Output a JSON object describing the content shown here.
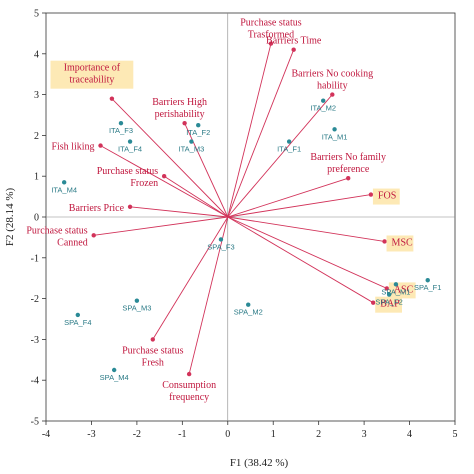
{
  "chart_data": {
    "type": "scatter",
    "subtype": "pca-biplot",
    "title": "",
    "xlabel": "F1 (38.42 %)",
    "ylabel": "F2 (28.14 %)",
    "xlim": [
      -4,
      5
    ],
    "ylim": [
      -5,
      5
    ],
    "x_ticks": [
      "-4",
      "-3",
      "-2",
      "-1",
      "0",
      "1",
      "2",
      "3",
      "4",
      "5"
    ],
    "y_ticks": [
      "5",
      "4",
      "3",
      "2",
      "1",
      "0",
      "-1",
      "-2",
      "-3",
      "-4",
      "-5"
    ],
    "vector_color": "#d2335a",
    "point_color": "#2a8a96",
    "highlight_color": "#fde9b5",
    "variables": [
      {
        "label": [
          "Purchase status",
          "Trasformed"
        ],
        "x": 0.95,
        "y": 4.25
      },
      {
        "label": [
          "Barriers Time"
        ],
        "x": 1.45,
        "y": 4.1
      },
      {
        "label": [
          "Barriers No cooking",
          "hability"
        ],
        "x": 2.3,
        "y": 3.0
      },
      {
        "label": [
          "Importance of",
          "traceability"
        ],
        "x": -2.55,
        "y": 2.9,
        "highlight": true
      },
      {
        "label": [
          "Barriers High",
          "perishability"
        ],
        "x": -0.95,
        "y": 2.3
      },
      {
        "label": [
          "Fish liking"
        ],
        "x": -2.8,
        "y": 1.75
      },
      {
        "label": [
          "Purchase status",
          "Frozen"
        ],
        "x": -1.4,
        "y": 1.0
      },
      {
        "label": [
          "Barriers Price"
        ],
        "x": -2.15,
        "y": 0.25
      },
      {
        "label": [
          "Barriers No family",
          "preference"
        ],
        "x": 2.65,
        "y": 0.95
      },
      {
        "label": [
          "FOS"
        ],
        "x": 3.15,
        "y": 0.55,
        "highlight": true
      },
      {
        "label": [
          "Purchase status",
          "Canned"
        ],
        "x": -2.95,
        "y": -0.45
      },
      {
        "label": [
          "MSC"
        ],
        "x": 3.45,
        "y": -0.6,
        "highlight": true
      },
      {
        "label": [
          "ASC"
        ],
        "x": 3.5,
        "y": -1.75,
        "highlight": true
      },
      {
        "label": [
          "BAP"
        ],
        "x": 3.2,
        "y": -2.1,
        "highlight": true
      },
      {
        "label": [
          "Purchase status",
          "Fresh"
        ],
        "x": -1.65,
        "y": -3.0
      },
      {
        "label": [
          "Consumption",
          "frequency"
        ],
        "x": -0.85,
        "y": -3.85
      }
    ],
    "observations": [
      {
        "label": "ITA_M2",
        "x": 2.1,
        "y": 2.85
      },
      {
        "label": "ITA_M1",
        "x": 2.35,
        "y": 2.15
      },
      {
        "label": "ITA_F1",
        "x": 1.35,
        "y": 1.85
      },
      {
        "label": "ITA_F3",
        "x": -2.35,
        "y": 2.3
      },
      {
        "label": "ITA_F4",
        "x": -2.15,
        "y": 1.85
      },
      {
        "label": "ITA_F2",
        "x": -0.65,
        "y": 2.25
      },
      {
        "label": "ITA_M3",
        "x": -0.8,
        "y": 1.85
      },
      {
        "label": "ITA_M4",
        "x": -3.6,
        "y": 0.85
      },
      {
        "label": "SPA_F3",
        "x": -0.15,
        "y": -0.55
      },
      {
        "label": "SPA_M3",
        "x": -2.0,
        "y": -2.05
      },
      {
        "label": "SPA_M2",
        "x": 0.45,
        "y": -2.15
      },
      {
        "label": "SPA_F4",
        "x": -3.3,
        "y": -2.4
      },
      {
        "label": "SPA_M4",
        "x": -2.5,
        "y": -3.75
      },
      {
        "label": "SPA_M1",
        "x": 3.7,
        "y": -1.65
      },
      {
        "label": "SPA_F1",
        "x": 4.4,
        "y": -1.55
      },
      {
        "label": "SPA_F2",
        "x": 3.55,
        "y": -1.9
      }
    ]
  }
}
